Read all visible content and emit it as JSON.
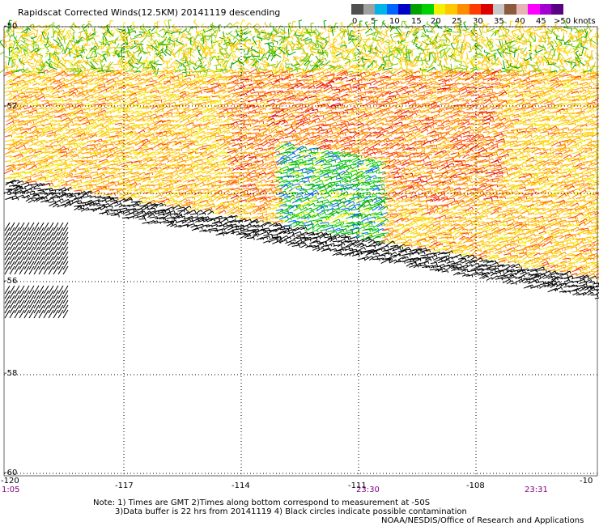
{
  "title": "Rapidscat Corrected Winds(12.5KM) 20141119 descending",
  "colorbar": {
    "colors": [
      "#505050",
      "#a0a0a0",
      "#00b4e6",
      "#0064ff",
      "#0000c8",
      "#00a000",
      "#00d200",
      "#f0f000",
      "#ffc800",
      "#ff8c00",
      "#ff3c00",
      "#dc0000",
      "#c8c8c8",
      "#8c5a3c",
      "#e6b4b4",
      "#ff00ff",
      "#a000d2",
      "#5a0082"
    ],
    "labels": [
      "0",
      "5",
      "10",
      "15",
      "20",
      "25",
      "30",
      "35",
      "40",
      "45",
      ">50 knots"
    ]
  },
  "lat_labels": [
    "-50",
    "-52",
    "-54",
    "-56",
    "-58",
    "-60"
  ],
  "lon_labels": [
    "-120",
    "-117",
    "-114",
    "-111",
    "-108",
    "-10"
  ],
  "times": [
    "1:05",
    "23:30",
    "23:31"
  ],
  "notes": {
    "line1": "Note: 1) Times are GMT 2)Times along bottom correspond to measurement at -50S",
    "line2": "3)Data buffer is 22 hrs from 20141119 4) Black circles indicate possible contamination",
    "line3": "NOAA/NESDIS/Office of Research and Applications"
  }
}
